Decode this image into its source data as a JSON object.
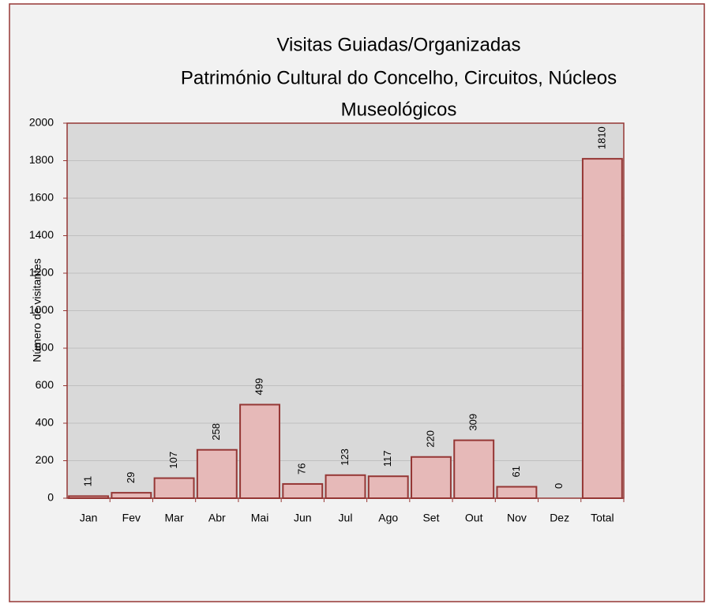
{
  "chart_data": {
    "type": "bar",
    "title": [
      "Visitas Guiadas/Organizadas",
      "Património Cultural do Concelho, Circuitos, Núcleos",
      "Museológicos"
    ],
    "y_label": "Número de visitantes",
    "categories": [
      "Jan",
      "Fev",
      "Mar",
      "Abr",
      "Mai",
      "Jun",
      "Jul",
      "Ago",
      "Set",
      "Out",
      "Nov",
      "Dez",
      "Total"
    ],
    "values": [
      11,
      29,
      107,
      258,
      499,
      76,
      123,
      117,
      220,
      309,
      61,
      0,
      1810
    ],
    "color": "#e6b9b8",
    "edge_color": "#953735",
    "ylim": [
      0,
      2000
    ],
    "yticks": [
      0,
      200,
      400,
      600,
      800,
      1000,
      1200,
      1400,
      1600,
      1800,
      2000
    ],
    "grid": true
  }
}
